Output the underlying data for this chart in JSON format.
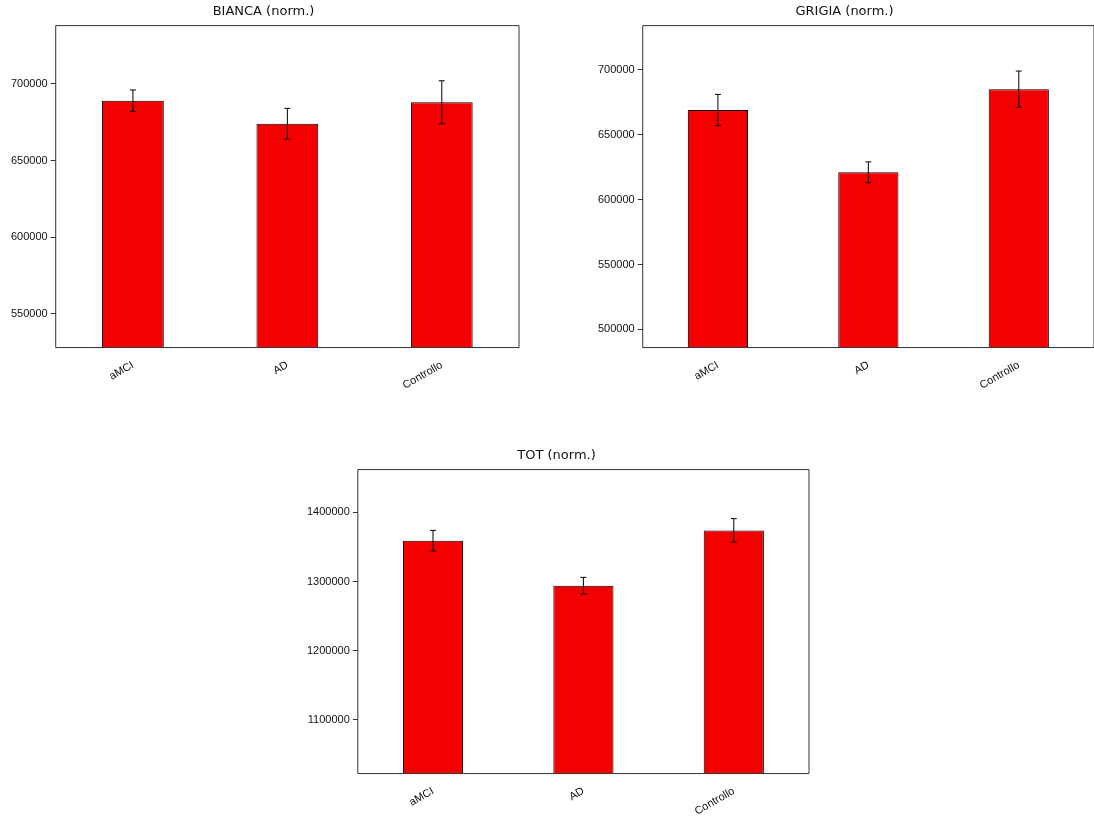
{
  "chart_data": [
    {
      "type": "bar",
      "title": "BIANCA (norm.)",
      "categories": [
        "aMCI",
        "AD",
        "Controllo"
      ],
      "values": [
        689000,
        674000,
        688000
      ],
      "errors": [
        7000,
        10000,
        14000
      ],
      "color": "#f50000",
      "ylim": [
        528000,
        738000
      ],
      "yticks": [
        550000,
        600000,
        650000,
        700000
      ],
      "grid": false,
      "legend": false
    },
    {
      "type": "bar",
      "title": "GRIGIA (norm.)",
      "categories": [
        "aMCI",
        "AD",
        "Controllo"
      ],
      "values": [
        669000,
        621000,
        685000
      ],
      "errors": [
        12000,
        8000,
        14000
      ],
      "color": "#f50000",
      "ylim": [
        486000,
        734000
      ],
      "yticks": [
        500000,
        550000,
        600000,
        650000,
        700000
      ],
      "grid": false,
      "legend": false
    },
    {
      "type": "bar",
      "title": "TOT (norm.)",
      "categories": [
        "aMCI",
        "AD",
        "Controllo"
      ],
      "values": [
        1359000,
        1294000,
        1374000
      ],
      "errors": [
        15000,
        12000,
        17000
      ],
      "color": "#f50000",
      "ylim": [
        1022000,
        1462000
      ],
      "yticks": [
        1100000,
        1200000,
        1300000,
        1400000
      ],
      "grid": false,
      "legend": false
    }
  ]
}
